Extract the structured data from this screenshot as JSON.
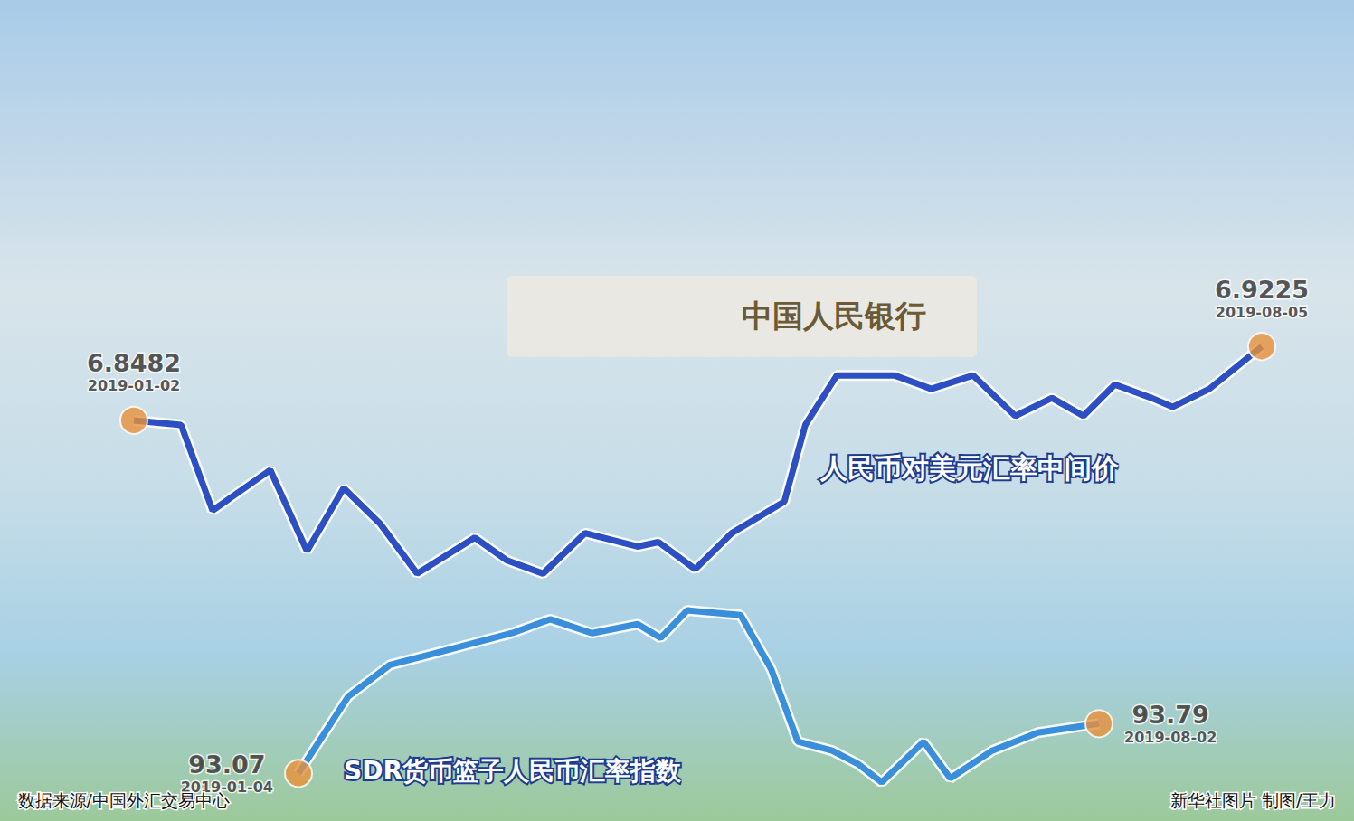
{
  "chart_data": [
    {
      "type": "line",
      "x": [
        "2019-01-02",
        "2019-01-11",
        "2019-01-17",
        "2019-01-28",
        "2019-02-04",
        "2019-02-11",
        "2019-02-18",
        "2019-02-25",
        "2019-03-08",
        "2019-03-14",
        "2019-03-21",
        "2019-03-29",
        "2019-04-08",
        "2019-04-12",
        "2019-04-19",
        "2019-04-26",
        "2019-05-06",
        "2019-05-10",
        "2019-05-16",
        "2019-05-27",
        "2019-06-03",
        "2019-06-11",
        "2019-06-19",
        "2019-06-26",
        "2019-07-02",
        "2019-07-08",
        "2019-07-15",
        "2019-07-19",
        "2019-07-26",
        "2019-08-05"
      ],
      "series": [
        {
          "name": "人民币对美元汇率中间价",
          "color": "#2c4fc4",
          "values": [
            6.8482,
            6.8437,
            6.7576,
            6.7984,
            6.7168,
            6.7803,
            6.744,
            6.6942,
            6.7304,
            6.7078,
            6.6942,
            6.7349,
            6.7214,
            6.7259,
            6.6987,
            6.7349,
            6.7667,
            6.8437,
            6.8935,
            6.8935,
            6.8799,
            6.8935,
            6.8527,
            6.8708,
            6.8527,
            6.8844,
            6.8708,
            6.8618,
            6.8799,
            6.9225
          ]
        }
      ],
      "xlim": [
        "2019-01-02",
        "2019-08-05"
      ],
      "ylim": [
        6.68,
        6.94
      ],
      "grid": false,
      "tick_labels": false,
      "marker": "circle",
      "annotations": [
        {
          "x": "2019-01-02",
          "y": 6.8482,
          "label": "6.8482",
          "date_label": "2019-01-02"
        },
        {
          "x": "2019-08-05",
          "y": 6.9225,
          "label": "6.9225",
          "date_label": "2019-08-05"
        }
      ]
    },
    {
      "type": "line",
      "x": [
        "2019-01-04",
        "2019-01-17",
        "2019-01-28",
        "2019-02-11",
        "2019-03-01",
        "2019-03-11",
        "2019-03-22",
        "2019-04-03",
        "2019-04-09",
        "2019-04-16",
        "2019-04-30",
        "2019-05-08",
        "2019-05-15",
        "2019-05-24",
        "2019-05-31",
        "2019-06-06",
        "2019-06-17",
        "2019-06-24",
        "2019-07-05",
        "2019-07-17",
        "2019-08-02"
      ],
      "series": [
        {
          "name": "SDR货币篮子人民币汇率指数",
          "color": "#3a8fdc",
          "values": [
            93.07,
            94.18,
            94.64,
            94.84,
            95.1,
            95.3,
            95.1,
            95.23,
            95.03,
            95.43,
            95.36,
            94.58,
            93.53,
            93.4,
            93.2,
            92.94,
            93.53,
            93.0,
            93.4,
            93.66,
            93.79
          ]
        }
      ],
      "xlim": [
        "2019-01-04",
        "2019-08-02"
      ],
      "ylim": [
        92.8,
        95.6
      ],
      "grid": false,
      "tick_labels": false,
      "marker": "circle",
      "annotations": [
        {
          "x": "2019-01-04",
          "y": 93.07,
          "label": "93.07",
          "date_label": "2019-01-04"
        },
        {
          "x": "2019-08-02",
          "y": 93.79,
          "label": "93.79",
          "date_label": "2019-08-02"
        }
      ]
    }
  ],
  "background_text": "中国人民银行",
  "footer": {
    "source": "数据来源/中国外汇交易中心",
    "credit": "新华社图片 制图/王力"
  }
}
